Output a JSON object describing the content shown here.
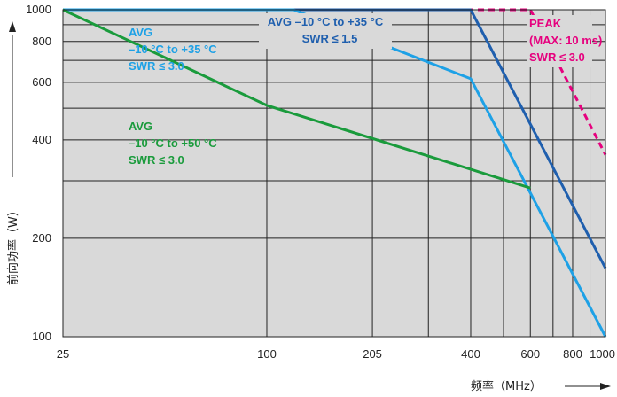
{
  "chart_data": {
    "type": "line",
    "xlabel": "频率（MHz）",
    "ylabel": "前向功率（W）",
    "x_scale": "log",
    "y_scale": "log",
    "xlim": [
      25,
      1000
    ],
    "ylim": [
      100,
      1000
    ],
    "grid": true,
    "x_ticks": [
      {
        "value": 25,
        "label": "25"
      },
      {
        "value": 100,
        "label": "100"
      },
      {
        "value": 205,
        "label": "205"
      },
      {
        "value": 400,
        "label": "400"
      },
      {
        "value": 600,
        "label": "600"
      },
      {
        "value": 800,
        "label": "800"
      },
      {
        "value": 1000,
        "label": "1000"
      }
    ],
    "x_grid_extra": [
      300,
      500,
      700,
      900
    ],
    "y_ticks": [
      {
        "value": 100,
        "label": "100"
      },
      {
        "value": 200,
        "label": "200"
      },
      {
        "value": 400,
        "label": "400"
      },
      {
        "value": 600,
        "label": "600"
      },
      {
        "value": 800,
        "label": "800"
      },
      {
        "value": 1000,
        "label": "1000"
      }
    ],
    "y_grid_extra": [
      300,
      500,
      700,
      900
    ],
    "series": [
      {
        "key": "peak",
        "color": "#e6007e",
        "dashed": true,
        "points": [
          [
            25,
            1000
          ],
          [
            600,
            1000
          ],
          [
            1000,
            360
          ]
        ],
        "annotation": [
          "PEAK",
          "(MAX: 10 ms)",
          "SWR ≤ 3.0"
        ]
      },
      {
        "key": "avg_dark",
        "color": "#1f5fae",
        "dashed": false,
        "points": [
          [
            25,
            1000
          ],
          [
            400,
            1000
          ],
          [
            1000,
            162
          ]
        ],
        "annotation": [
          "AVG  –10 °C to +35 °C",
          "SWR ≤ 1.5"
        ]
      },
      {
        "key": "avg_light",
        "color": "#1ea1e6",
        "dashed": false,
        "points": [
          [
            25,
            1000
          ],
          [
            120,
            1000
          ],
          [
            400,
            615
          ],
          [
            1000,
            100
          ]
        ],
        "annotation": [
          "AVG",
          "–10 °C to +35 °C",
          "SWR ≤ 3.0"
        ]
      },
      {
        "key": "avg_green",
        "color": "#1a9b3c",
        "dashed": false,
        "points": [
          [
            25,
            1000
          ],
          [
            100,
            510
          ],
          [
            600,
            285
          ]
        ],
        "annotation": [
          "AVG",
          "–10 °C to  +50 °C",
          "SWR ≤ 3.0"
        ]
      }
    ]
  }
}
